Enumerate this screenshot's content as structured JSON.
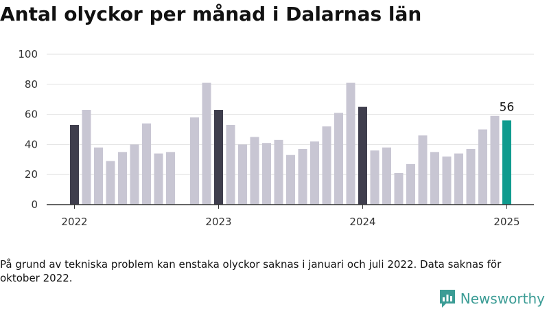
{
  "title": "Antal olyckor per månad i Dalarnas län",
  "note": "På grund av tekniska problem kan enstaka olyckor saknas i januari och juli 2022. Data saknas för oktober 2022.",
  "brand": {
    "name": "Newsworthy",
    "icon": "newsworthy-logo-icon",
    "color": "#3b9c95"
  },
  "chart_data": {
    "type": "bar",
    "title": "Antal olyckor per månad i Dalarnas län",
    "xlabel": "",
    "ylabel": "",
    "ylim": [
      0,
      100
    ],
    "yticks": [
      0,
      20,
      40,
      60,
      80,
      100
    ],
    "xtick_labels": [
      "2022",
      "2023",
      "2024",
      "2025"
    ],
    "grid": true,
    "colors": {
      "default": "#c8c6d3",
      "january": "#3f3e4d",
      "latest": "#0f9b8e"
    },
    "highlight_label": "56",
    "bars": [
      {
        "month": "2022-01",
        "value": 53
      },
      {
        "month": "2022-02",
        "value": 63
      },
      {
        "month": "2022-03",
        "value": 38
      },
      {
        "month": "2022-04",
        "value": 29
      },
      {
        "month": "2022-05",
        "value": 35
      },
      {
        "month": "2022-06",
        "value": 40
      },
      {
        "month": "2022-07",
        "value": 54
      },
      {
        "month": "2022-08",
        "value": 34
      },
      {
        "month": "2022-09",
        "value": 35
      },
      {
        "month": "2022-10",
        "value": null
      },
      {
        "month": "2022-11",
        "value": 58
      },
      {
        "month": "2022-12",
        "value": 81
      },
      {
        "month": "2023-01",
        "value": 63
      },
      {
        "month": "2023-02",
        "value": 53
      },
      {
        "month": "2023-03",
        "value": 40
      },
      {
        "month": "2023-04",
        "value": 45
      },
      {
        "month": "2023-05",
        "value": 41
      },
      {
        "month": "2023-06",
        "value": 43
      },
      {
        "month": "2023-07",
        "value": 33
      },
      {
        "month": "2023-08",
        "value": 37
      },
      {
        "month": "2023-09",
        "value": 42
      },
      {
        "month": "2023-10",
        "value": 52
      },
      {
        "month": "2023-11",
        "value": 61
      },
      {
        "month": "2023-12",
        "value": 81
      },
      {
        "month": "2024-01",
        "value": 65
      },
      {
        "month": "2024-02",
        "value": 36
      },
      {
        "month": "2024-03",
        "value": 38
      },
      {
        "month": "2024-04",
        "value": 21
      },
      {
        "month": "2024-05",
        "value": 27
      },
      {
        "month": "2024-06",
        "value": 46
      },
      {
        "month": "2024-07",
        "value": 35
      },
      {
        "month": "2024-08",
        "value": 32
      },
      {
        "month": "2024-09",
        "value": 34
      },
      {
        "month": "2024-10",
        "value": 37
      },
      {
        "month": "2024-11",
        "value": 50
      },
      {
        "month": "2024-12",
        "value": 59
      },
      {
        "month": "2025-01",
        "value": 56
      }
    ]
  }
}
